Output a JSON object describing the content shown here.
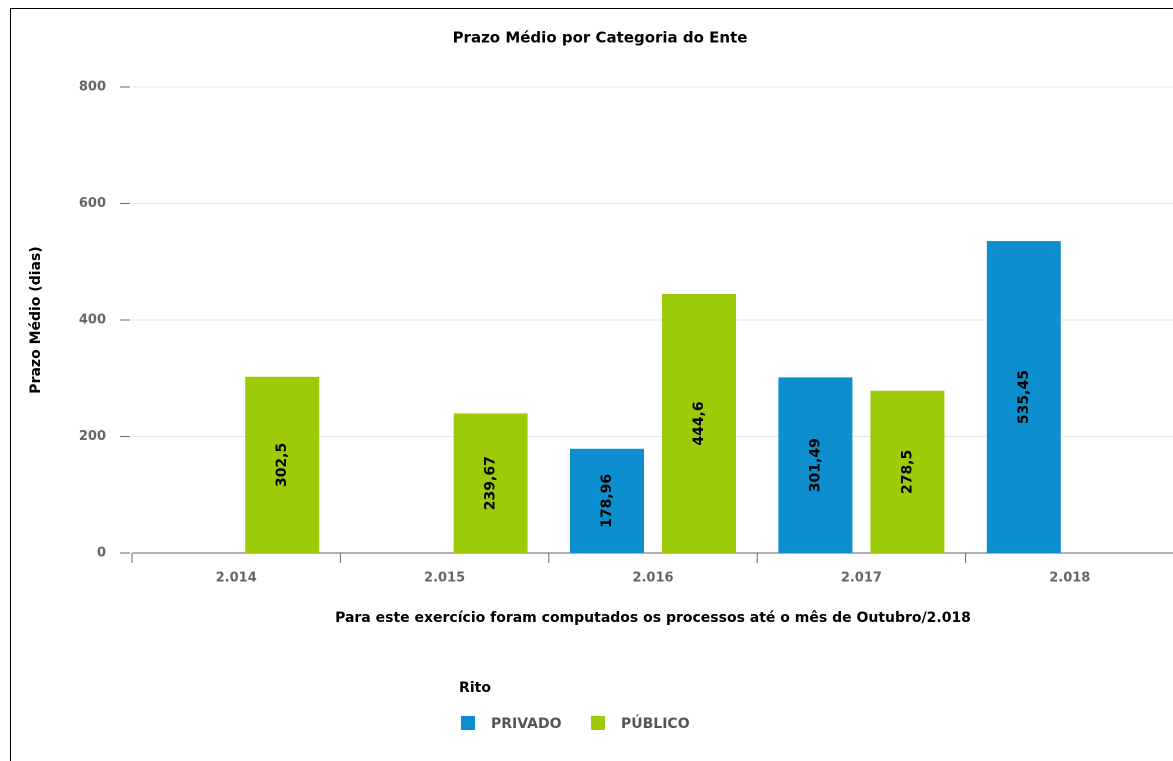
{
  "chart_data": {
    "type": "bar",
    "title": "Prazo Médio por Categoria do Ente",
    "y_axis_title": "Prazo Médio (dias)",
    "x_axis_title": "Para este exercício foram computados os processos até o mês de Outubro/2.018",
    "legend_title": "Rito",
    "categories": [
      "2.014",
      "2.015",
      "2.016",
      "2.017",
      "2.018"
    ],
    "series": [
      {
        "name": "PRIVADO",
        "color": "#0d8ecf",
        "values": [
          null,
          null,
          178.96,
          301.49,
          535.45
        ],
        "value_labels": [
          null,
          null,
          "178,96",
          "301,49",
          "535,45"
        ]
      },
      {
        "name": "PÚBLICO",
        "color": "#9dcb08",
        "values": [
          302.5,
          239.67,
          444.6,
          278.5,
          null
        ],
        "value_labels": [
          "302,5",
          "239,67",
          "444,6",
          "278,5",
          null
        ]
      }
    ],
    "ylim": [
      0,
      800
    ],
    "yticks": [
      0,
      200,
      400,
      600,
      800
    ],
    "grid": true
  }
}
